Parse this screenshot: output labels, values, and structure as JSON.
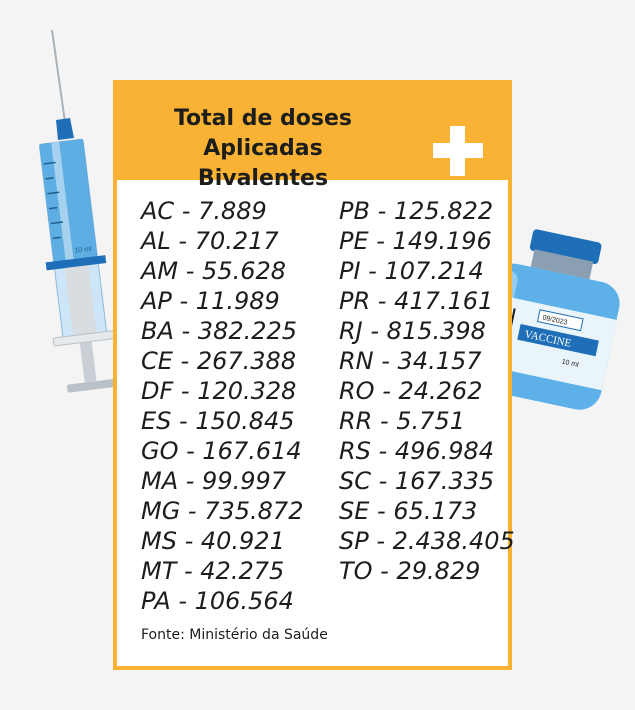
{
  "card": {
    "title_line1": "Total de doses",
    "title_line2": "Aplicadas Bivalentes",
    "source": "Fonte: Ministério da Saúde",
    "accent_color": "#f9b233"
  },
  "doses_left": [
    "AC - 7.889",
    "AL  - 70.217",
    "AM - 55.628",
    "AP  - 11.989",
    "BA - 382.225",
    "CE  - 267.388",
    "DF  - 120.328",
    "ES  - 150.845",
    "GO - 167.614",
    "MA - 99.997",
    "MG - 735.872",
    "MS - 40.921",
    "MT - 42.275",
    "PA  - 106.564"
  ],
  "doses_right": [
    "PB - 125.822",
    "PE - 149.196",
    "PI - 107.214",
    "PR - 417.161",
    "RJ - 815.398",
    "RN - 34.157",
    "RO - 24.262",
    "RR - 5.751",
    "RS - 496.984",
    "SC - 167.335",
    "SE - 65.173",
    "SP - 2.438.405",
    "TO - 29.829"
  ],
  "syringe": {
    "label": "10 ml"
  },
  "vial": {
    "date": "09/2023",
    "label": "VACCINE",
    "volume": "10 ml"
  }
}
